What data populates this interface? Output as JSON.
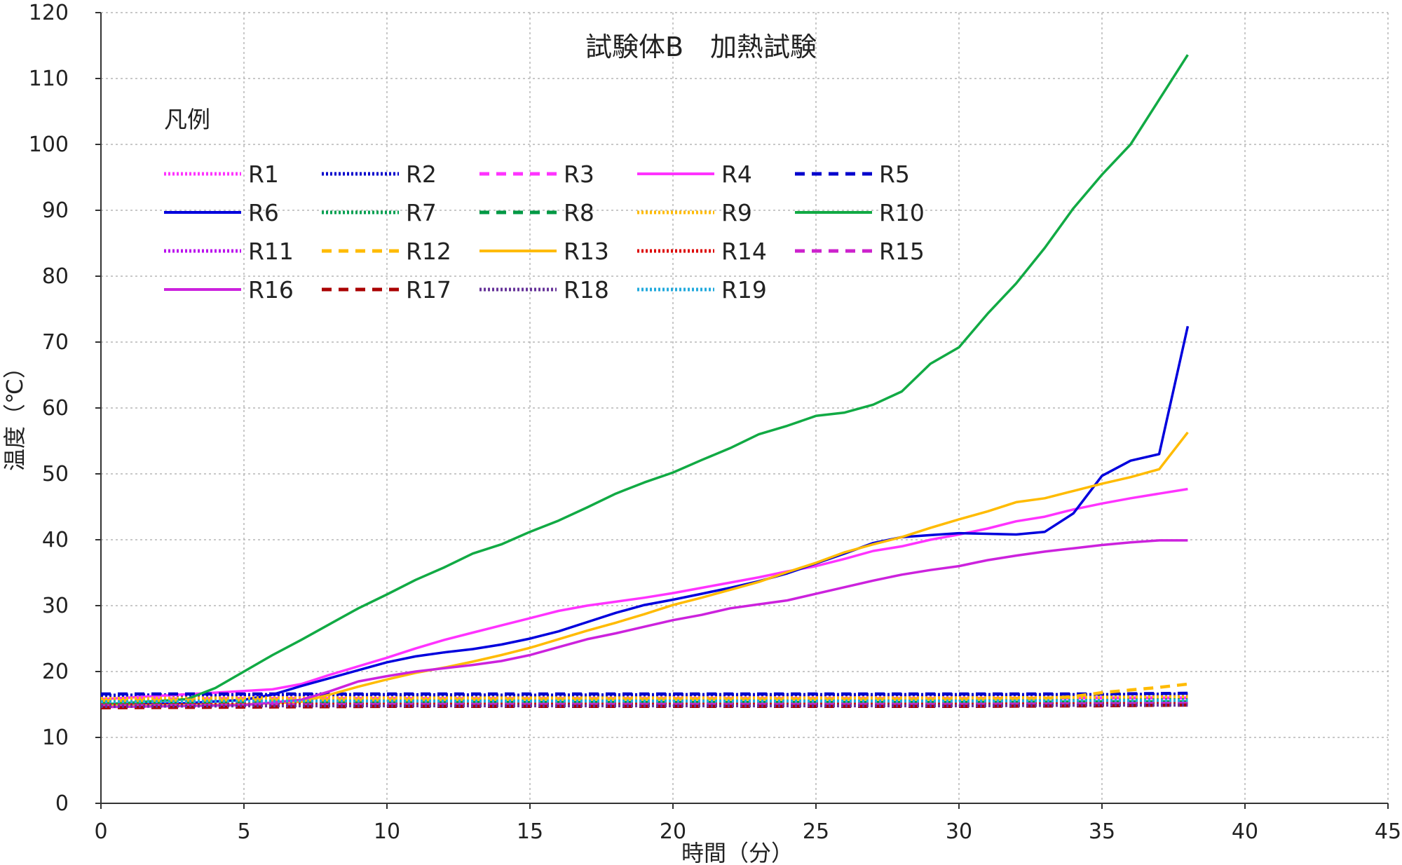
{
  "chart_data": {
    "type": "line",
    "title": "試験体B　加熱試験",
    "xlabel": "時間（分）",
    "ylabel": "温度（℃）",
    "legend_title": "凡例",
    "legend_position": "top-left",
    "grid": true,
    "xlim": [
      0,
      45
    ],
    "ylim": [
      0,
      120
    ],
    "x_ticks": [
      0,
      5,
      10,
      15,
      20,
      25,
      30,
      35,
      40,
      45
    ],
    "y_ticks": [
      0,
      10,
      20,
      30,
      40,
      50,
      60,
      70,
      80,
      90,
      100,
      110,
      120
    ],
    "x_tick_labels": [
      "0",
      "5",
      "10",
      "15",
      "20",
      "25",
      "30",
      "35",
      "40",
      "45"
    ],
    "y_tick_labels": [
      "0",
      "10",
      "20",
      "30",
      "40",
      "50",
      "60",
      "70",
      "80",
      "90",
      "100",
      "110",
      "120"
    ],
    "series": [
      {
        "name": "R1",
        "color": "#ff33ff",
        "style": "dotted",
        "x": [
          0,
          5,
          10,
          15,
          20,
          25,
          30,
          35,
          38
        ],
        "y": [
          16.1,
          16.2,
          16.2,
          16.2,
          16.2,
          16.2,
          16.2,
          16.3,
          16.3
        ]
      },
      {
        "name": "R2",
        "color": "#0000cc",
        "style": "dotted",
        "x": [
          0,
          5,
          10,
          15,
          20,
          25,
          30,
          35,
          38
        ],
        "y": [
          16.4,
          16.5,
          16.5,
          16.4,
          16.5,
          16.5,
          16.5,
          16.5,
          16.6
        ]
      },
      {
        "name": "R3",
        "color": "#ff33ff",
        "style": "dashed",
        "x": [
          0,
          5,
          10,
          15,
          20,
          25,
          30,
          35,
          38
        ],
        "y": [
          15.8,
          15.9,
          15.9,
          15.9,
          15.9,
          15.9,
          15.9,
          16.0,
          16.0
        ]
      },
      {
        "name": "R4",
        "color": "#ff33ff",
        "style": "solid",
        "x": [
          0,
          2,
          4,
          6,
          7,
          8,
          9,
          10,
          11,
          12,
          13,
          14,
          15,
          16,
          17,
          18,
          19,
          20,
          21,
          22,
          23,
          24,
          25,
          26,
          27,
          28,
          29,
          30,
          31,
          32,
          33,
          34,
          35,
          36,
          37,
          38
        ],
        "y": [
          15.8,
          16.3,
          16.8,
          17.3,
          18.1,
          19.5,
          20.8,
          22.1,
          23.5,
          24.8,
          25.9,
          27.0,
          28.1,
          29.2,
          30.0,
          30.6,
          31.2,
          31.9,
          32.7,
          33.5,
          34.3,
          35.2,
          36.0,
          37.1,
          38.3,
          39.0,
          40.0,
          40.8,
          41.7,
          42.8,
          43.5,
          44.6,
          45.5,
          46.3,
          47.0,
          47.7
        ]
      },
      {
        "name": "R5",
        "color": "#0000cc",
        "style": "dashed",
        "x": [
          0,
          5,
          10,
          15,
          20,
          25,
          30,
          35,
          38
        ],
        "y": [
          16.6,
          16.6,
          16.6,
          16.6,
          16.6,
          16.6,
          16.6,
          16.6,
          16.7
        ]
      },
      {
        "name": "R6",
        "color": "#0000dd",
        "style": "solid",
        "x": [
          0,
          3,
          5,
          6,
          7,
          8,
          9,
          10,
          11,
          12,
          13,
          14,
          15,
          16,
          17,
          18,
          19,
          20,
          21,
          22,
          23,
          24,
          25,
          26,
          27,
          28,
          29,
          30,
          31,
          32,
          33,
          34,
          35,
          36,
          37,
          38
        ],
        "y": [
          15.0,
          15.2,
          15.7,
          16.5,
          17.8,
          19.0,
          20.2,
          21.4,
          22.3,
          22.9,
          23.4,
          24.1,
          25.0,
          26.1,
          27.5,
          28.9,
          30.1,
          30.9,
          31.8,
          32.7,
          33.7,
          34.9,
          36.4,
          37.9,
          39.5,
          40.4,
          40.7,
          41.0,
          40.9,
          40.8,
          41.2,
          44.0,
          49.7,
          52.0,
          53.0,
          72.4
        ]
      },
      {
        "name": "R7",
        "color": "#00a050",
        "style": "dotted",
        "x": [
          0,
          5,
          10,
          15,
          20,
          25,
          30,
          35,
          38
        ],
        "y": [
          15.5,
          15.5,
          15.6,
          15.6,
          15.6,
          15.6,
          15.6,
          15.7,
          15.7
        ]
      },
      {
        "name": "R8",
        "color": "#009944",
        "style": "dashed",
        "x": [
          0,
          5,
          10,
          15,
          20,
          25,
          30,
          35,
          38
        ],
        "y": [
          15.2,
          15.3,
          15.3,
          15.3,
          15.3,
          15.3,
          15.3,
          15.4,
          15.4
        ]
      },
      {
        "name": "R9",
        "color": "#ffbb00",
        "style": "dotted",
        "x": [
          0,
          5,
          10,
          15,
          20,
          25,
          30,
          35,
          38
        ],
        "y": [
          15.9,
          16.0,
          16.0,
          16.0,
          16.0,
          16.0,
          16.0,
          16.1,
          16.2
        ]
      },
      {
        "name": "R10",
        "color": "#11aa44",
        "style": "solid",
        "x": [
          0,
          3,
          4,
          5,
          6,
          7,
          8,
          9,
          10,
          11,
          12,
          13,
          14,
          15,
          16,
          17,
          18,
          19,
          20,
          21,
          22,
          23,
          24,
          25,
          26,
          27,
          28,
          29,
          30,
          31,
          32,
          33,
          34,
          35,
          36,
          37,
          38
        ],
        "y": [
          15.0,
          15.8,
          17.5,
          20.0,
          22.5,
          24.8,
          27.2,
          29.6,
          31.7,
          33.9,
          35.8,
          37.9,
          39.3,
          41.2,
          42.9,
          44.9,
          47.0,
          48.7,
          50.2,
          52.1,
          53.9,
          56.0,
          57.3,
          58.8,
          59.3,
          60.5,
          62.5,
          66.7,
          69.2,
          74.3,
          78.9,
          84.3,
          90.3,
          95.4,
          100.0,
          106.8,
          113.6
        ]
      },
      {
        "name": "R11",
        "color": "#bb11ee",
        "style": "dotted",
        "x": [
          0,
          5,
          10,
          15,
          20,
          25,
          30,
          35,
          38
        ],
        "y": [
          15.0,
          15.1,
          15.1,
          15.1,
          15.1,
          15.1,
          15.1,
          15.2,
          15.2
        ]
      },
      {
        "name": "R12",
        "color": "#ffbb00",
        "style": "dashed",
        "x": [
          0,
          5,
          10,
          15,
          20,
          25,
          30,
          33,
          34,
          35,
          36,
          37,
          38
        ],
        "y": [
          15.6,
          15.7,
          15.7,
          15.8,
          15.8,
          15.8,
          15.8,
          15.9,
          16.2,
          16.8,
          17.2,
          17.6,
          18.1
        ]
      },
      {
        "name": "R13",
        "color": "#ffbb00",
        "style": "solid",
        "x": [
          0,
          5,
          7,
          8,
          9,
          10,
          11,
          12,
          13,
          14,
          15,
          16,
          17,
          18,
          19,
          20,
          21,
          22,
          23,
          24,
          25,
          26,
          27,
          28,
          29,
          30,
          31,
          32,
          33,
          34,
          35,
          36,
          37,
          38
        ],
        "y": [
          14.8,
          15.0,
          15.4,
          16.5,
          17.7,
          18.8,
          19.8,
          20.6,
          21.5,
          22.5,
          23.6,
          24.9,
          26.2,
          27.4,
          28.7,
          30.1,
          31.2,
          32.4,
          33.6,
          35.1,
          36.5,
          38.1,
          39.3,
          40.4,
          41.8,
          43.1,
          44.3,
          45.7,
          46.3,
          47.4,
          48.5,
          49.5,
          50.7,
          56.3
        ]
      },
      {
        "name": "R14",
        "color": "#dd0000",
        "style": "dotted",
        "x": [
          0,
          5,
          10,
          15,
          20,
          25,
          30,
          35,
          38
        ],
        "y": [
          15.1,
          15.2,
          15.2,
          15.2,
          15.2,
          15.2,
          15.2,
          15.3,
          15.3
        ]
      },
      {
        "name": "R15",
        "color": "#cc22cc",
        "style": "dashed",
        "x": [
          0,
          5,
          10,
          15,
          20,
          25,
          30,
          35,
          38
        ],
        "y": [
          14.8,
          14.9,
          15.0,
          15.0,
          15.0,
          15.0,
          15.0,
          15.1,
          15.2
        ]
      },
      {
        "name": "R16",
        "color": "#cc22dd",
        "style": "solid",
        "x": [
          0,
          5,
          7,
          8,
          9,
          10,
          11,
          12,
          13,
          14,
          15,
          16,
          17,
          18,
          19,
          20,
          21,
          22,
          23,
          24,
          25,
          26,
          27,
          28,
          29,
          30,
          31,
          32,
          33,
          34,
          35,
          36,
          37,
          38
        ],
        "y": [
          14.6,
          14.9,
          15.7,
          17.0,
          18.5,
          19.3,
          20.0,
          20.5,
          21.0,
          21.6,
          22.5,
          23.7,
          24.9,
          25.8,
          26.8,
          27.8,
          28.6,
          29.6,
          30.2,
          30.8,
          31.8,
          32.8,
          33.8,
          34.7,
          35.4,
          36.0,
          36.9,
          37.6,
          38.2,
          38.7,
          39.2,
          39.6,
          39.9,
          39.9
        ]
      },
      {
        "name": "R17",
        "color": "#aa0000",
        "style": "dashed",
        "x": [
          0,
          5,
          10,
          15,
          20,
          25,
          30,
          35,
          38
        ],
        "y": [
          14.5,
          14.6,
          14.7,
          14.7,
          14.7,
          14.7,
          14.7,
          14.8,
          14.9
        ]
      },
      {
        "name": "R18",
        "color": "#663399",
        "style": "dotted",
        "x": [
          0,
          5,
          10,
          15,
          20,
          25,
          30,
          35,
          38
        ],
        "y": [
          14.7,
          14.8,
          14.8,
          14.8,
          14.8,
          14.8,
          14.8,
          14.9,
          14.9
        ]
      },
      {
        "name": "R19",
        "color": "#22aadd",
        "style": "dotted",
        "x": [
          0,
          5,
          10,
          15,
          20,
          25,
          30,
          35,
          38
        ],
        "y": [
          15.4,
          15.5,
          15.5,
          15.5,
          15.5,
          15.5,
          15.5,
          15.6,
          15.6
        ]
      }
    ]
  }
}
